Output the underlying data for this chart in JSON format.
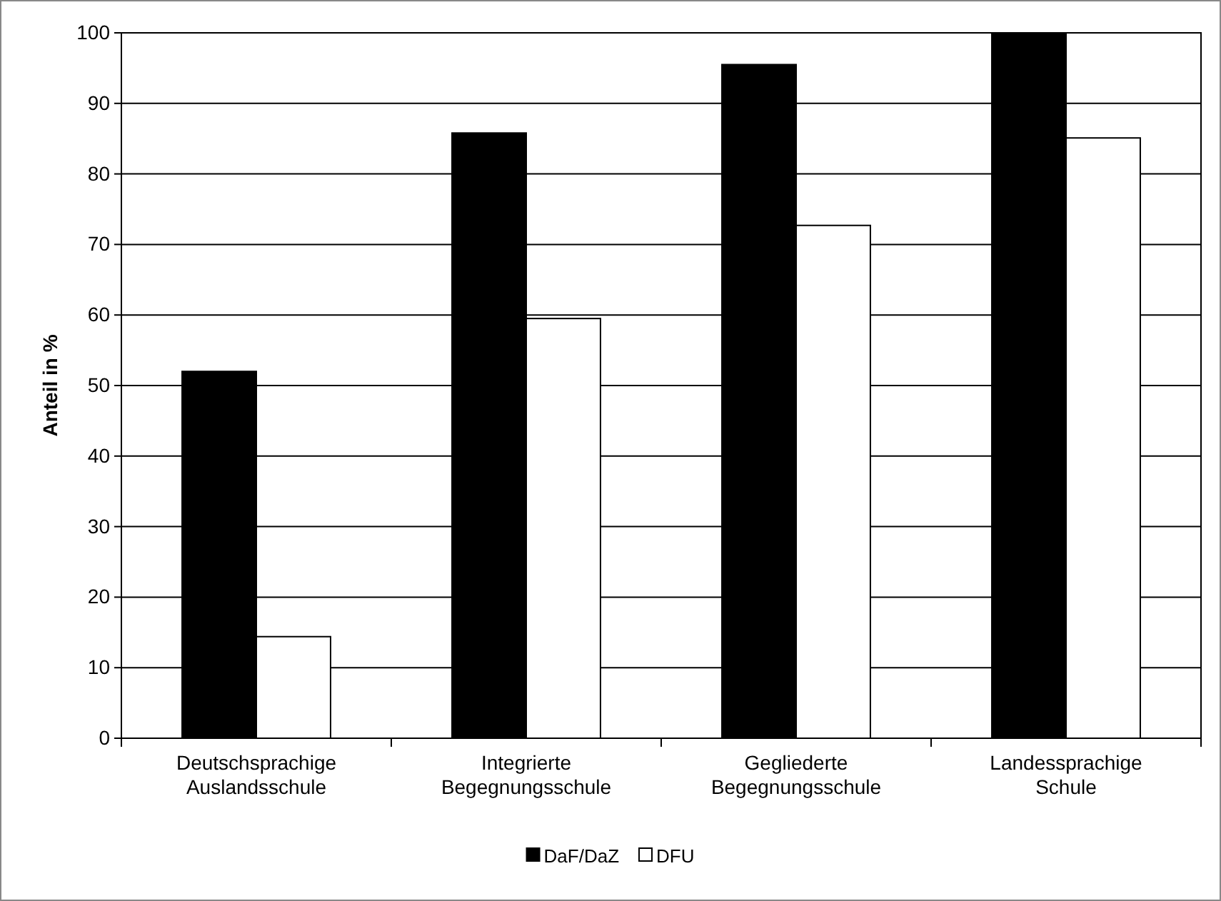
{
  "chart_data": {
    "type": "bar",
    "ylabel": "Anteil in %",
    "categories": [
      "Deutschsprachige Auslandsschule",
      "Integrierte Begegnungsschule",
      "Gegliederte Begegnungsschule",
      "Landessprachige Schule"
    ],
    "series": [
      {
        "name": "DaF/DaZ",
        "color": "#000000",
        "values": [
          52,
          85.8,
          95.5,
          100
        ]
      },
      {
        "name": "DFU",
        "color": "#ffffff",
        "values": [
          14.4,
          59.5,
          72.7,
          85.1
        ]
      }
    ],
    "ylim": [
      0,
      100
    ],
    "yticks": [
      0,
      10,
      20,
      30,
      40,
      50,
      60,
      70,
      80,
      90,
      100
    ],
    "grid": "y",
    "legend": "bottom"
  }
}
